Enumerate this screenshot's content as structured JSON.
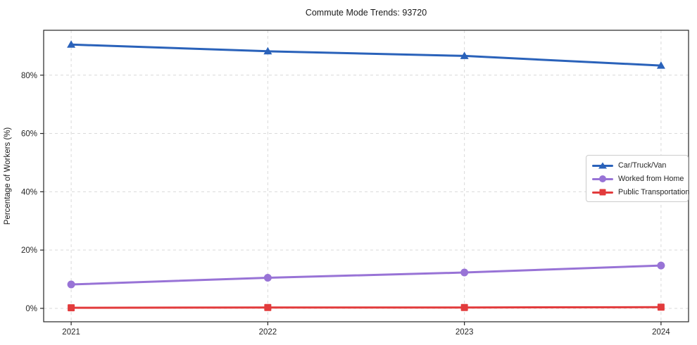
{
  "chart_data": {
    "type": "line",
    "title": "Commute Mode Trends: 93720",
    "xlabel": "",
    "ylabel": "Percentage of Workers (%)",
    "x": [
      2021,
      2022,
      2023,
      2024
    ],
    "x_tick_labels": [
      "2021",
      "2022",
      "2023",
      "2024"
    ],
    "y_ticks": [
      0,
      20,
      40,
      60,
      80
    ],
    "y_tick_labels": [
      "0%",
      "20%",
      "40%",
      "60%",
      "80%"
    ],
    "xlim": [
      2020.86,
      2024.14
    ],
    "ylim": [
      -4.6,
      95.4
    ],
    "grid": true,
    "grid_style": "dashed",
    "legend_position": "center-right",
    "series": [
      {
        "name": "Car/Truck/Van",
        "color": "#2a62ba",
        "marker": "triangle",
        "values": [
          90.5,
          88.2,
          86.6,
          83.3
        ]
      },
      {
        "name": "Worked from Home",
        "color": "#9873d6",
        "marker": "circle",
        "values": [
          8.2,
          10.5,
          12.3,
          14.7
        ]
      },
      {
        "name": "Public Transportation",
        "color": "#e23b3c",
        "marker": "square",
        "values": [
          0.2,
          0.3,
          0.3,
          0.4
        ]
      }
    ],
    "colors": {
      "grid": "#d9d9d9",
      "spine": "#262626",
      "background": "#ffffff"
    }
  }
}
